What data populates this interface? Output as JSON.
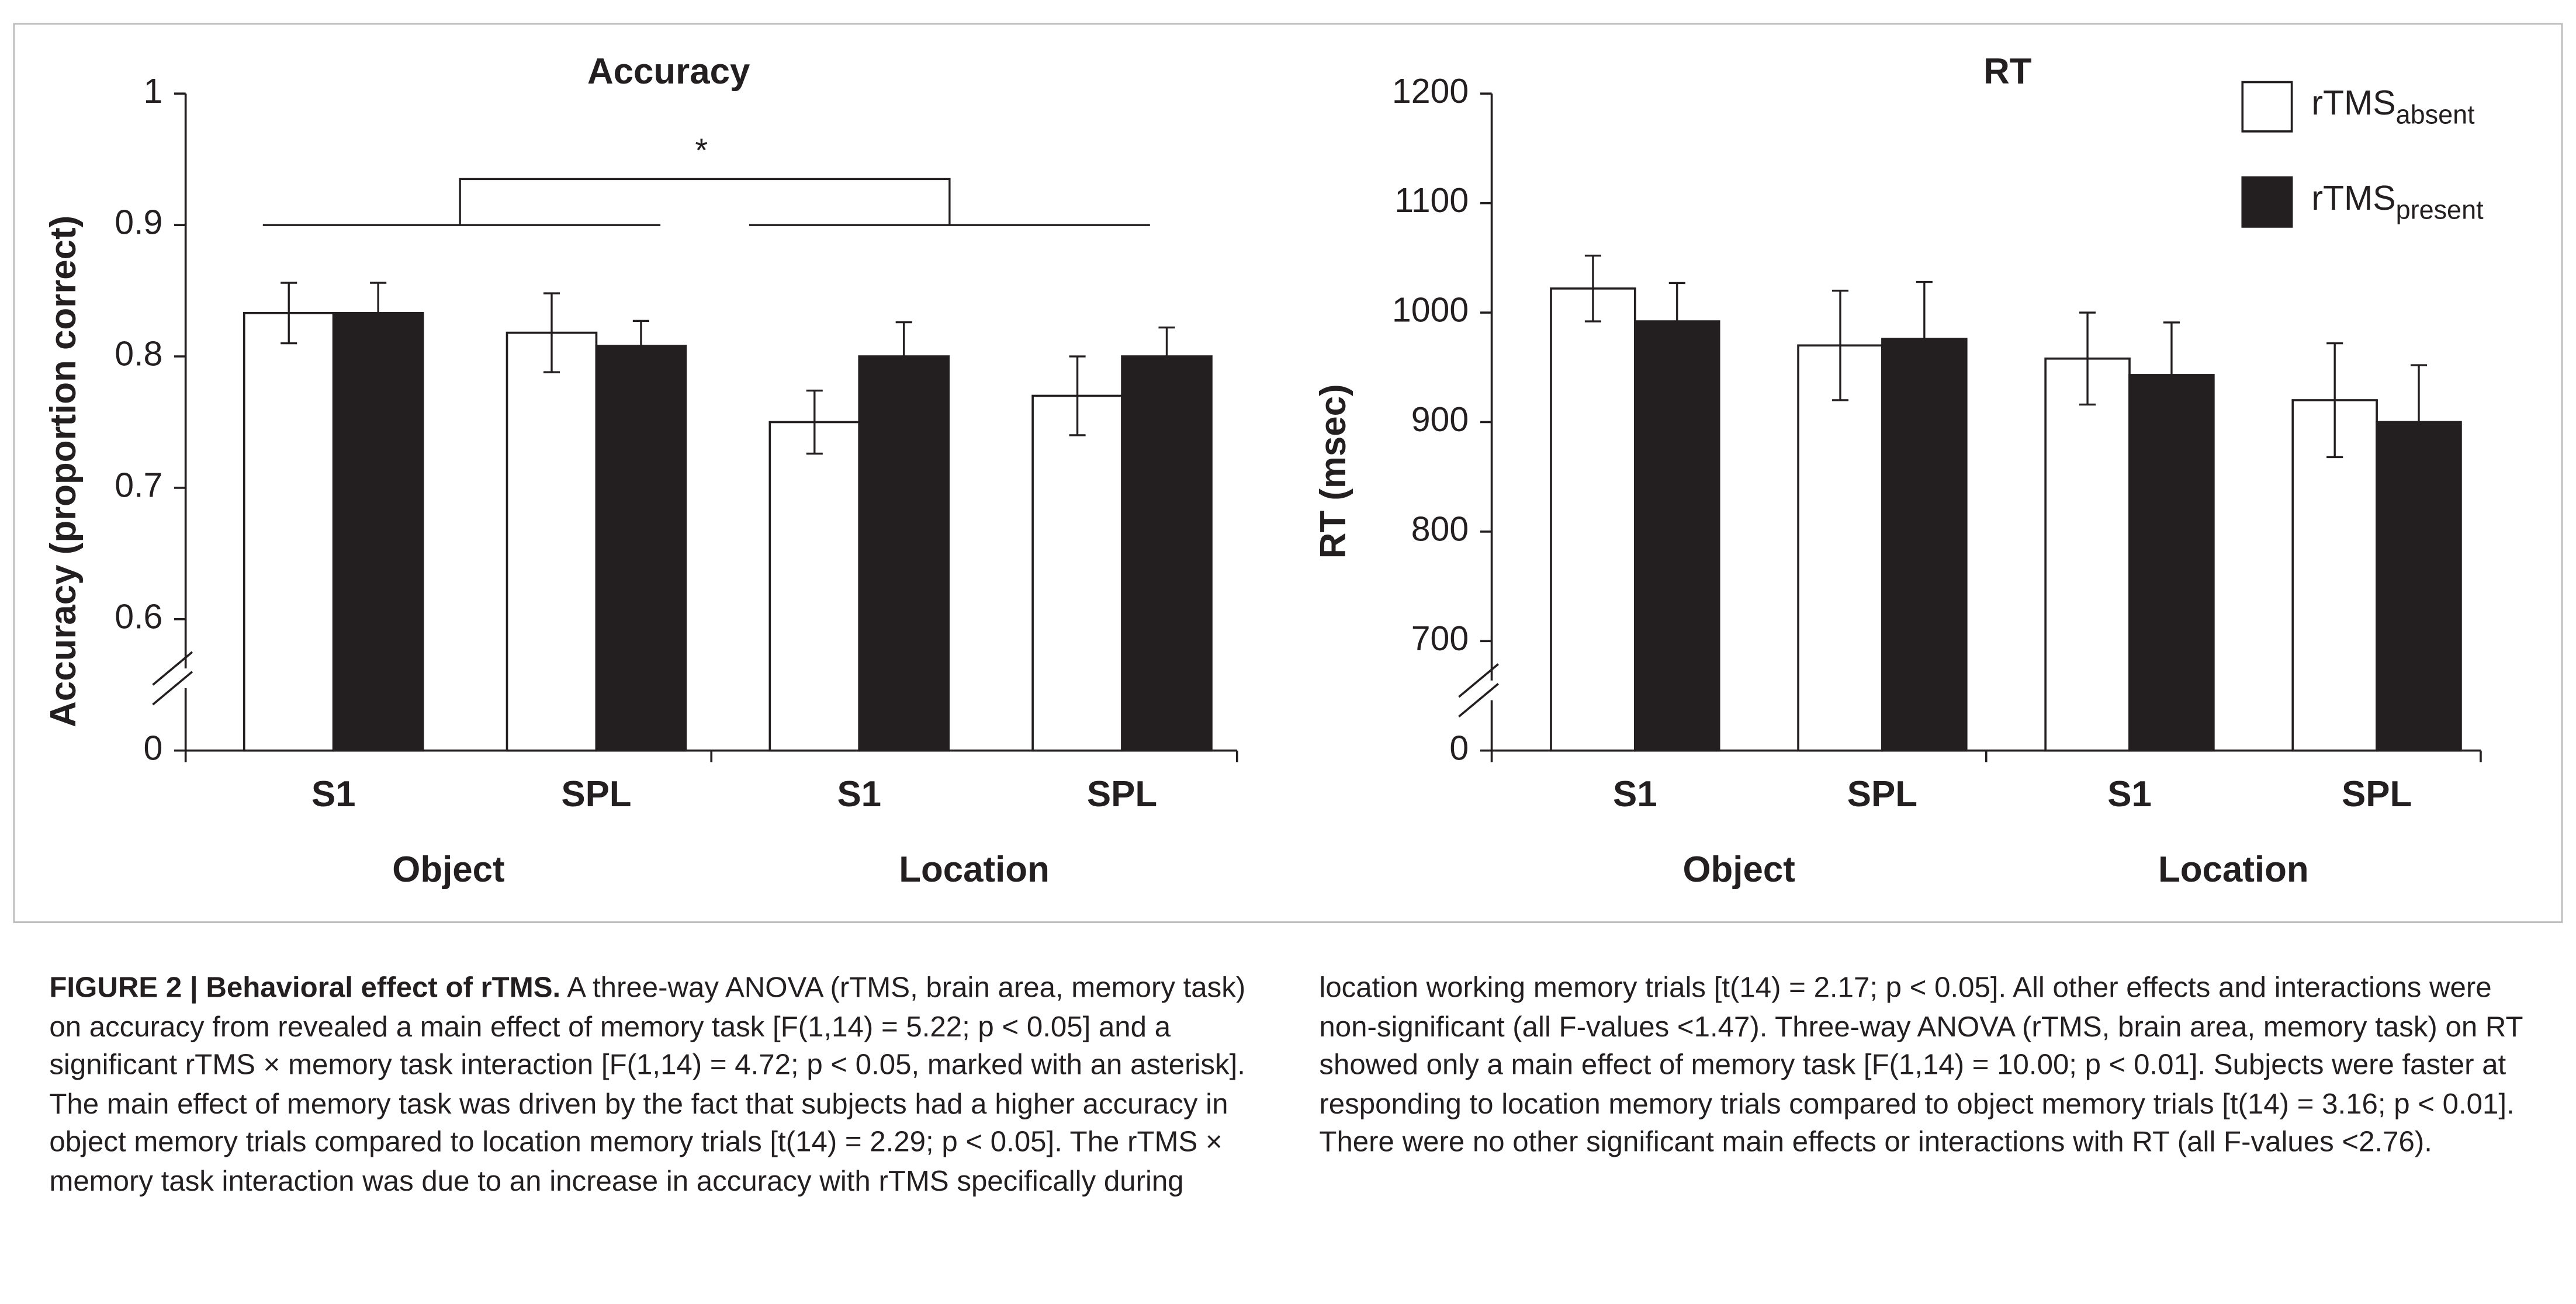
{
  "charts": [
    {
      "type": "bar",
      "title": "Accuracy",
      "ylabel": "Accuracy (proportion correct)",
      "categories": [
        "S1",
        "SPL",
        "S1",
        "SPL"
      ],
      "groups": [
        "Object",
        "Location"
      ],
      "ylim": [
        0,
        1
      ],
      "yticks": [
        0,
        0.6,
        0.7,
        0.8,
        0.9,
        1
      ],
      "axis_break": true,
      "annotation": "*",
      "series": [
        {
          "name": "rTMS",
          "subscript": "absent",
          "color": "#ffffff",
          "values": [
            0.833,
            0.818,
            0.75,
            0.77
          ],
          "errors": [
            0.023,
            0.03,
            0.024,
            0.03
          ]
        },
        {
          "name": "rTMS",
          "subscript": "present",
          "color": "#231f20",
          "values": [
            0.833,
            0.808,
            0.8,
            0.8
          ],
          "errors": [
            0.023,
            0.019,
            0.026,
            0.022
          ]
        }
      ]
    },
    {
      "type": "bar",
      "title": "RT",
      "ylabel": "RT (msec)",
      "categories": [
        "S1",
        "SPL",
        "S1",
        "SPL"
      ],
      "groups": [
        "Object",
        "Location"
      ],
      "ylim": [
        0,
        1200
      ],
      "yticks": [
        0,
        700,
        800,
        900,
        1000,
        1100,
        1200
      ],
      "axis_break": true,
      "legend": "upper right",
      "series": [
        {
          "name": "rTMS",
          "subscript": "absent",
          "color": "#ffffff",
          "values": [
            1022,
            970,
            958,
            920
          ],
          "errors": [
            30,
            50,
            42,
            52
          ]
        },
        {
          "name": "rTMS",
          "subscript": "present",
          "color": "#231f20",
          "values": [
            992,
            976,
            943,
            900
          ],
          "errors": [
            35,
            52,
            48,
            52
          ]
        }
      ]
    }
  ],
  "caption": {
    "label": "FIGURE 2 | Behavioral effect of rTMS.",
    "text": "A three-way ANOVA (rTMS, brain area, memory task) on accuracy from revealed a main effect of memory task [F(1,14) = 5.22; p < 0.05] and a significant rTMS × memory task interaction [F(1,14) = 4.72; p < 0.05, marked with an asterisk]. The main effect of memory task was driven by the fact that subjects had a higher accuracy in object memory trials compared to location memory trials [t(14) = 2.29; p < 0.05]. The rTMS × memory task interaction was due to an increase in accuracy with rTMS specifically during location working memory trials [t(14) = 2.17; p < 0.05]. All other effects and interactions were non-significant (all F-values <1.47). Three-way ANOVA (rTMS, brain area, memory task) on RT showed only a main effect of memory task [F(1,14) = 10.00; p < 0.01]. Subjects were faster at responding to location memory trials compared to object memory trials [t(14) = 3.16; p < 0.01]. There were no other significant main effects or interactions with RT (all F-values <2.76)."
  }
}
